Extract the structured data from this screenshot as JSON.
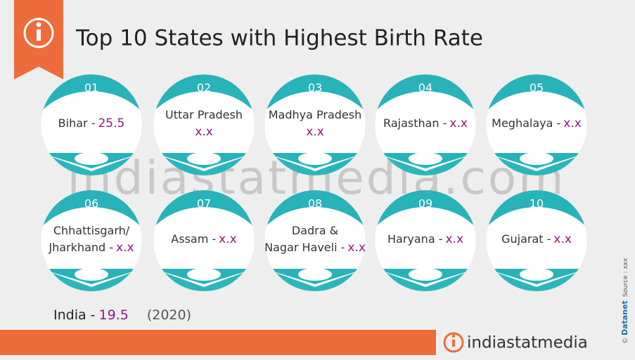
{
  "header": {
    "title": "Top 10 States with Highest Birth Rate"
  },
  "cards": [
    {
      "number": "01",
      "label": [
        "Bihar -"
      ],
      "value": "25.5"
    },
    {
      "number": "02",
      "label": [
        "Uttar Pradesh"
      ],
      "value": "x.x",
      "value_own_line": true
    },
    {
      "number": "03",
      "label": [
        "Madhya Pradesh"
      ],
      "value": "x.x",
      "value_own_line": true
    },
    {
      "number": "04",
      "label": [
        "Rajasthan -"
      ],
      "value": "x.x"
    },
    {
      "number": "05",
      "label": [
        "Meghalaya -"
      ],
      "value": "x.x"
    },
    {
      "number": "06",
      "label": [
        "Chhattisgarh/",
        "Jharkhand -"
      ],
      "value": "x.x"
    },
    {
      "number": "07",
      "label": [
        "Assam -"
      ],
      "value": "x.x"
    },
    {
      "number": "08",
      "label": [
        "Dadra &",
        "Nagar Haveli -"
      ],
      "value": "x.x"
    },
    {
      "number": "09",
      "label": [
        "Haryana -"
      ],
      "value": "x.x"
    },
    {
      "number": "10",
      "label": [
        "Gujarat -"
      ],
      "value": "x.x"
    }
  ],
  "summary": {
    "label": "India -",
    "value": "19.5",
    "year": "(2020)"
  },
  "watermark": "indiastatmedia.com",
  "footer": {
    "logo": "indiastatmedia",
    "brand": "Datanet",
    "copyright": "©",
    "source": "Source : xxx"
  }
}
